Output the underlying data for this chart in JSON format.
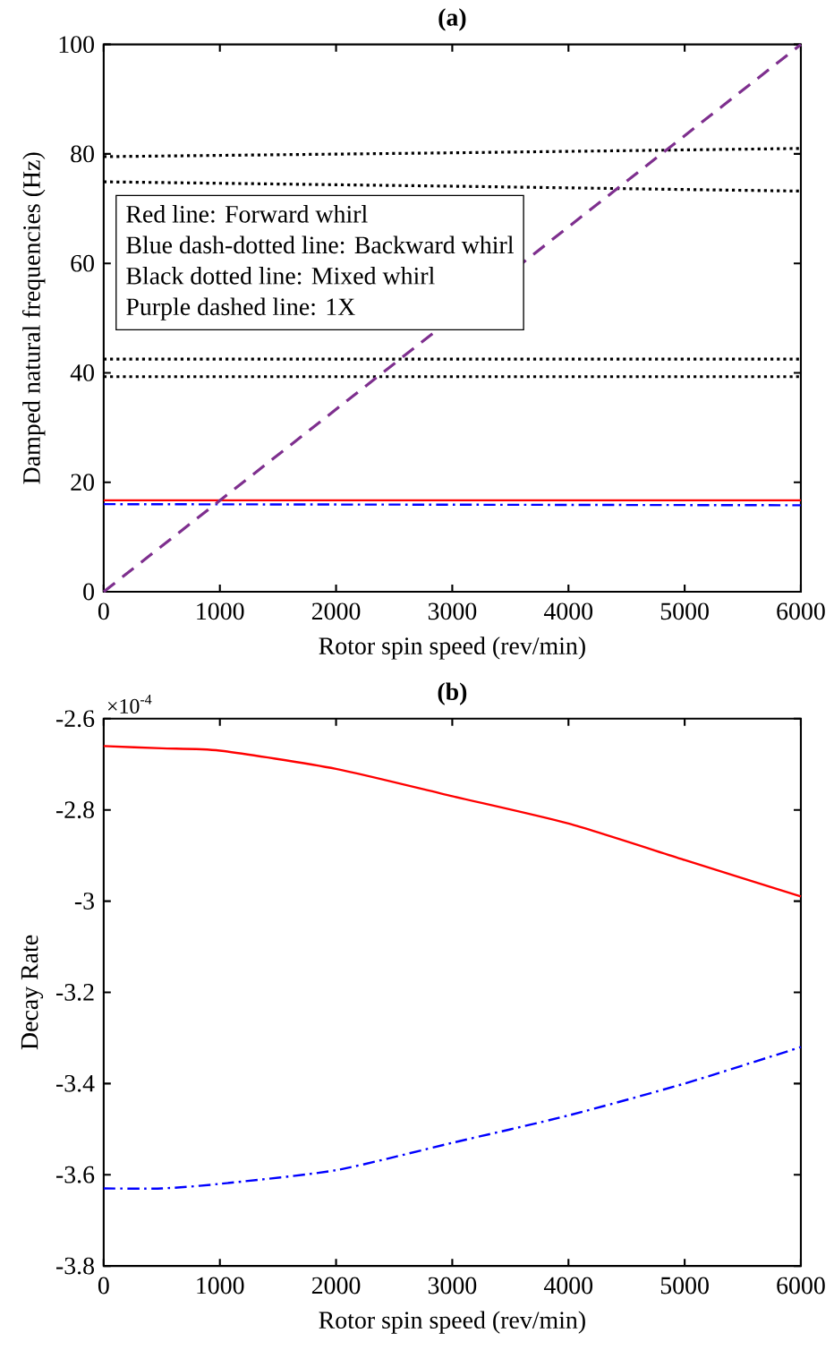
{
  "chart_data": [
    {
      "type": "line",
      "title": "(a)",
      "xlabel": "Rotor spin speed (rev/min)",
      "ylabel": "Damped natural frequencies (Hz)",
      "xlim": [
        0,
        6000
      ],
      "ylim": [
        0,
        100
      ],
      "xticks": [
        0,
        1000,
        2000,
        3000,
        4000,
        5000,
        6000
      ],
      "yticks": [
        0,
        20,
        40,
        60,
        80,
        100
      ],
      "annotations": [
        "Red line: Forward whirl",
        "Blue dash-dotted line: Backward whirl",
        "Black dotted line: Mixed whirl",
        "Purple dashed line: 1X"
      ],
      "series": [
        {
          "color": "#ff0000",
          "line_style": "solid",
          "x": [
            0,
            3000,
            6000
          ],
          "values": [
            16.7,
            16.7,
            16.7
          ]
        },
        {
          "color": "#0000ff",
          "line_style": "dashdot",
          "x": [
            0,
            3000,
            6000
          ],
          "values": [
            16.0,
            15.9,
            15.8
          ]
        },
        {
          "color": "#000000",
          "line_style": "dotted",
          "x": [
            0,
            3000,
            6000
          ],
          "values": [
            79.5,
            80.2,
            81.0
          ]
        },
        {
          "color": "#000000",
          "line_style": "dotted",
          "x": [
            0,
            3000,
            6000
          ],
          "values": [
            74.9,
            74.1,
            73.2
          ]
        },
        {
          "color": "#000000",
          "line_style": "dotted",
          "x": [
            0,
            3000,
            6000
          ],
          "values": [
            42.5,
            42.5,
            42.5
          ]
        },
        {
          "color": "#000000",
          "line_style": "dotted",
          "x": [
            0,
            3000,
            6000
          ],
          "values": [
            39.3,
            39.3,
            39.3
          ]
        },
        {
          "color": "#7e2f8e",
          "line_style": "dashed",
          "x": [
            0,
            6000
          ],
          "values": [
            0,
            100
          ]
        }
      ]
    },
    {
      "type": "line",
      "title": "(b)",
      "xlabel": "Rotor spin speed (rev/min)",
      "ylabel": "Decay Rate",
      "xlim": [
        0,
        6000
      ],
      "ylim": [
        -3.8,
        -2.6
      ],
      "xticks": [
        0,
        1000,
        2000,
        3000,
        4000,
        5000,
        6000
      ],
      "yticks": [
        -3.8,
        -3.6,
        -3.4,
        -3.2,
        -3,
        -2.8,
        -2.6
      ],
      "annotations": [
        "×10$^{-4}$"
      ],
      "series": [
        {
          "color": "#ff0000",
          "line_style": "solid",
          "x": [
            0,
            500,
            1000,
            2000,
            3000,
            4000,
            5000,
            6000
          ],
          "values": [
            -2.66,
            -2.665,
            -2.67,
            -2.71,
            -2.77,
            -2.83,
            -2.91,
            -2.99
          ]
        },
        {
          "color": "#0000ff",
          "line_style": "dashdot",
          "x": [
            0,
            500,
            1000,
            2000,
            3000,
            4000,
            5000,
            6000
          ],
          "values": [
            -3.63,
            -3.63,
            -3.62,
            -3.59,
            -3.53,
            -3.47,
            -3.4,
            -3.32
          ]
        }
      ]
    }
  ]
}
